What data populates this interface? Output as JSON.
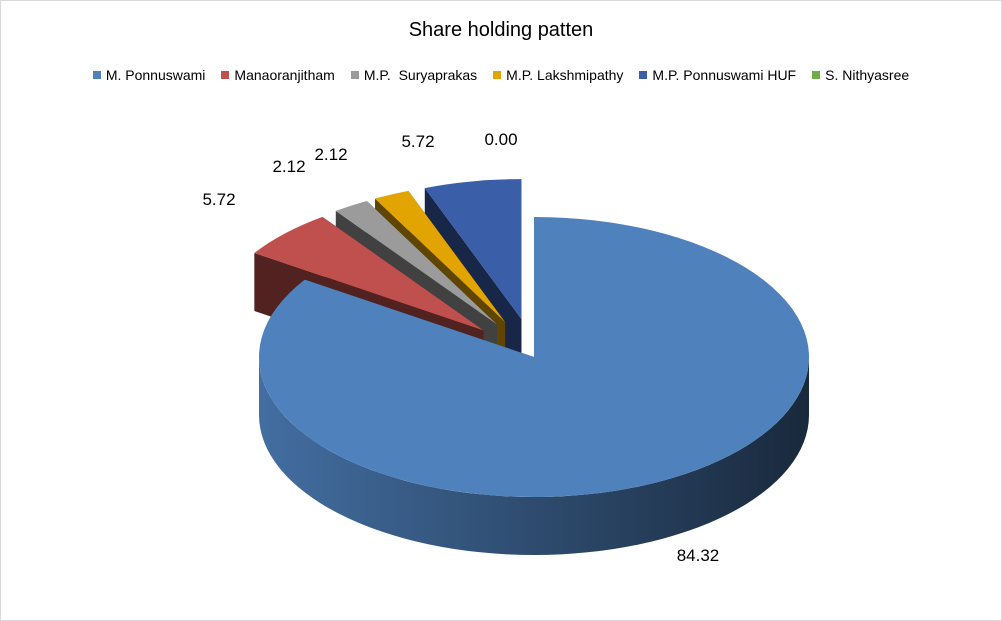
{
  "chart_data": {
    "type": "pie",
    "title": "Share holding patten",
    "legend_position": "top",
    "three_d": true,
    "exploded": true,
    "slices": [
      {
        "name": "M. Ponnuswami",
        "value": 84.32,
        "label": "84.32",
        "color": "#4f81bd"
      },
      {
        "name": "Manaoranjitham",
        "value": 5.72,
        "label": "5.72",
        "color": "#c0504d"
      },
      {
        "name": "M.P.  Suryaprakas",
        "value": 2.12,
        "label": "2.12",
        "color": "#9b9b9b"
      },
      {
        "name": "M.P. Lakshmipathy",
        "value": 2.12,
        "label": "2.12",
        "color": "#e2a400"
      },
      {
        "name": "M.P. Ponnuswami HUF",
        "value": 5.72,
        "label": "5.72",
        "color": "#3a5ea8"
      },
      {
        "name": "S. Nithyasree",
        "value": 0.0,
        "label": "0.00",
        "color": "#70ad47"
      }
    ]
  }
}
